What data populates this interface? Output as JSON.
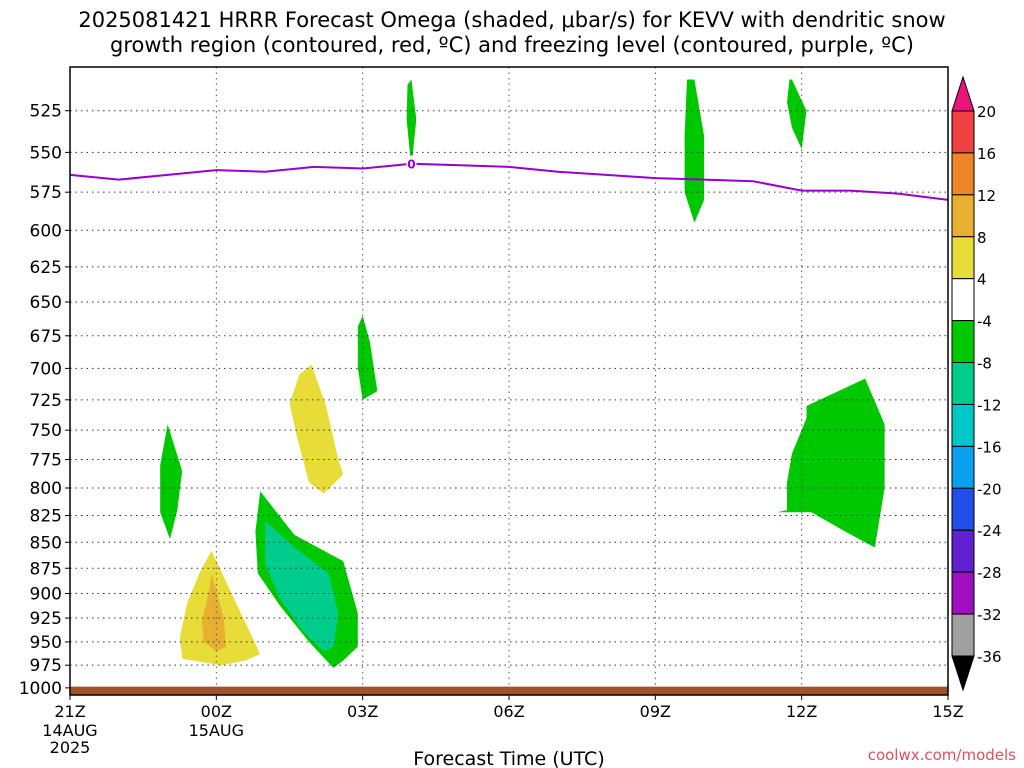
{
  "title": {
    "line1": "2025081421 HRRR Forecast Omega (shaded, μbar/s) for KEVV with dendritic snow",
    "line2": "growth region (contoured, red, ºC) and freezing level (contoured, purple, ºC)"
  },
  "watermark": "coolwx.com/models",
  "chart_data": {
    "type": "time-height cross section",
    "xlabel": "Forecast Time (UTC)",
    "x_ticks": [
      {
        "h": 0,
        "label": "21Z",
        "sub": [
          "14AUG",
          "2025"
        ]
      },
      {
        "h": 3,
        "label": "00Z",
        "sub": [
          "15AUG"
        ]
      },
      {
        "h": 6,
        "label": "03Z",
        "sub": []
      },
      {
        "h": 9,
        "label": "06Z",
        "sub": []
      },
      {
        "h": 12,
        "label": "09Z",
        "sub": []
      },
      {
        "h": 15,
        "label": "12Z",
        "sub": []
      },
      {
        "h": 18,
        "label": "15Z",
        "sub": []
      }
    ],
    "x_range_hours": [
      0,
      18
    ],
    "ylabel": "",
    "y_ticks": [
      525,
      550,
      575,
      600,
      625,
      650,
      675,
      700,
      725,
      750,
      775,
      800,
      825,
      850,
      875,
      900,
      925,
      950,
      975,
      1000
    ],
    "y_range_hpa": [
      500,
      1008
    ],
    "y_scale": "log",
    "grid": true,
    "colorbar": {
      "labels": [
        "20",
        "16",
        "12",
        "8",
        "4",
        "-4",
        "-8",
        "-12",
        "-16",
        "-20",
        "-24",
        "-28",
        "-32",
        "-36"
      ],
      "colors_top_to_bottom": [
        "#e8157a",
        "#f04040",
        "#f08528",
        "#e8b030",
        "#e8dc38",
        "#ffffff",
        "#00c800",
        "#00cc8c",
        "#00c8c8",
        "#0aa0f0",
        "#2050e8",
        "#6020d0",
        "#a010c0",
        "#a0a0a0",
        "#000000"
      ]
    },
    "freezing_level": {
      "color": "#9900cc",
      "label": "0",
      "points": [
        [
          0,
          564
        ],
        [
          1,
          567
        ],
        [
          2,
          564
        ],
        [
          3,
          561
        ],
        [
          4,
          562
        ],
        [
          5,
          559
        ],
        [
          6,
          560
        ],
        [
          7,
          557
        ],
        [
          8,
          558
        ],
        [
          9,
          559
        ],
        [
          10,
          562
        ],
        [
          11,
          564
        ],
        [
          12,
          566
        ],
        [
          13,
          567
        ],
        [
          14,
          568
        ],
        [
          15,
          574
        ],
        [
          16,
          574
        ],
        [
          17,
          576
        ],
        [
          18,
          580
        ]
      ]
    },
    "terrain": {
      "color": "#a0522d",
      "pressure_hpa": 1002
    },
    "omega_regions": [
      {
        "value": 4,
        "color": "#e8dc38",
        "points": [
          [
            2.9,
            858
          ],
          [
            3.9,
            963
          ],
          [
            3.6,
            970
          ],
          [
            3.1,
            975
          ],
          [
            2.3,
            968
          ],
          [
            2.25,
            945
          ],
          [
            2.4,
            910
          ],
          [
            2.65,
            880
          ]
        ]
      },
      {
        "value": 8,
        "color": "#e8b030",
        "points": [
          [
            2.9,
            880
          ],
          [
            3.15,
            925
          ],
          [
            3.2,
            955
          ],
          [
            3.0,
            960
          ],
          [
            2.75,
            950
          ],
          [
            2.7,
            930
          ],
          [
            2.85,
            898
          ]
        ]
      },
      {
        "value": 4,
        "color": "#e8dc38",
        "points": [
          [
            4.95,
            697
          ],
          [
            5.25,
            730
          ],
          [
            5.5,
            775
          ],
          [
            5.6,
            788
          ],
          [
            5.2,
            805
          ],
          [
            4.9,
            795
          ],
          [
            4.65,
            755
          ],
          [
            4.5,
            728
          ],
          [
            4.7,
            705
          ]
        ]
      },
      {
        "value": -4,
        "color": "#00c800",
        "points": [
          [
            3.9,
            803
          ],
          [
            4.6,
            843
          ],
          [
            5.6,
            868
          ],
          [
            5.9,
            920
          ],
          [
            5.9,
            955
          ],
          [
            5.6,
            970
          ],
          [
            5.4,
            978
          ],
          [
            4.9,
            950
          ],
          [
            4.3,
            912
          ],
          [
            3.85,
            880
          ],
          [
            3.8,
            840
          ]
        ]
      },
      {
        "value": -8,
        "color": "#00cc8c",
        "points": [
          [
            4.0,
            830
          ],
          [
            4.6,
            855
          ],
          [
            5.3,
            880
          ],
          [
            5.5,
            920
          ],
          [
            5.4,
            955
          ],
          [
            5.2,
            960
          ],
          [
            4.8,
            940
          ],
          [
            4.3,
            905
          ],
          [
            4.0,
            870
          ]
        ]
      },
      {
        "value": -4,
        "color": "#00c800",
        "points": [
          [
            2.0,
            745
          ],
          [
            2.3,
            785
          ],
          [
            2.2,
            820
          ],
          [
            2.05,
            847
          ],
          [
            1.85,
            822
          ],
          [
            1.85,
            780
          ]
        ]
      },
      {
        "value": -4,
        "color": "#00c800",
        "points": [
          [
            6.0,
            660
          ],
          [
            6.15,
            680
          ],
          [
            6.3,
            718
          ],
          [
            6.0,
            725
          ],
          [
            5.9,
            700
          ],
          [
            5.9,
            668
          ]
        ]
      },
      {
        "value": -4,
        "color": "#00c800",
        "points": [
          [
            7.0,
            507
          ],
          [
            7.1,
            530
          ],
          [
            7.0,
            560
          ],
          [
            6.9,
            530
          ],
          [
            6.92,
            510
          ]
        ]
      },
      {
        "value": -4,
        "color": "#00c800",
        "points": [
          [
            12.8,
            507
          ],
          [
            13.0,
            540
          ],
          [
            13.0,
            580
          ],
          [
            12.8,
            595
          ],
          [
            12.6,
            575
          ],
          [
            12.6,
            540
          ],
          [
            12.65,
            507
          ]
        ]
      },
      {
        "value": -4,
        "color": "#00c800",
        "points": [
          [
            14.8,
            507
          ],
          [
            15.1,
            525
          ],
          [
            15.0,
            548
          ],
          [
            14.8,
            535
          ],
          [
            14.7,
            520
          ],
          [
            14.75,
            507
          ]
        ]
      },
      {
        "value": -4,
        "color": "#00c800",
        "points": [
          [
            15.1,
            730
          ],
          [
            16.3,
            708
          ],
          [
            16.7,
            745
          ],
          [
            16.7,
            800
          ],
          [
            16.5,
            855
          ],
          [
            15.9,
            840
          ],
          [
            15.2,
            822
          ],
          [
            14.5,
            822
          ],
          [
            14.7,
            820
          ],
          [
            14.7,
            795
          ],
          [
            14.8,
            770
          ],
          [
            15.1,
            740
          ]
        ]
      }
    ]
  }
}
